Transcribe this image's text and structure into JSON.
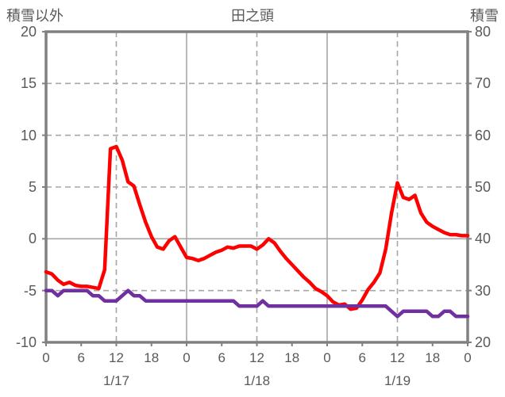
{
  "header": {
    "left_axis_title": "積雪以外",
    "chart_title": "田之頭",
    "right_axis_title": "積雪"
  },
  "colors": {
    "series_other": "#ff0000",
    "series_snow": "#7030a0",
    "gridline": "#a6a6a6",
    "border": "#808080",
    "text": "#595959"
  },
  "chart_data": {
    "type": "line",
    "title": "田之頭",
    "grid": true,
    "legend": "none",
    "left_axis": {
      "label": "積雪以外",
      "min": -10,
      "max": 20,
      "tick_step": 5,
      "ticks": [
        20,
        15,
        10,
        5,
        0,
        -5,
        -10
      ]
    },
    "right_axis": {
      "label": "積雪",
      "min": 20,
      "max": 80,
      "tick_step": 10,
      "ticks": [
        80,
        70,
        60,
        50,
        40,
        30,
        20
      ]
    },
    "x_axis": {
      "hours_total": 72,
      "hour_tick_step": 6,
      "hour_labels": [
        "0",
        "6",
        "12",
        "18",
        "0",
        "6",
        "12",
        "18",
        "0",
        "6",
        "12",
        "18",
        "0"
      ],
      "date_labels": [
        "1/17",
        "1/18",
        "1/19"
      ],
      "solid_gridlines_hours": [
        24,
        48
      ],
      "dashed_gridlines_hours": [
        12,
        36,
        60
      ]
    },
    "series": [
      {
        "name": "積雪以外",
        "axis": "left",
        "color": "#ff0000",
        "x_start_hour": 0,
        "x_step_hours": 1,
        "values": [
          -3.2,
          -3.4,
          -4.0,
          -4.4,
          -4.2,
          -4.5,
          -4.6,
          -4.6,
          -4.7,
          -4.8,
          -3.0,
          8.7,
          8.9,
          7.6,
          5.5,
          5.1,
          3.3,
          1.6,
          0.2,
          -0.8,
          -1.0,
          -0.2,
          0.2,
          -0.8,
          -1.8,
          -1.9,
          -2.1,
          -1.9,
          -1.6,
          -1.3,
          -1.1,
          -0.8,
          -0.9,
          -0.7,
          -0.7,
          -0.7,
          -1.0,
          -0.6,
          0.0,
          -0.4,
          -1.2,
          -1.9,
          -2.5,
          -3.1,
          -3.7,
          -4.2,
          -4.8,
          -5.1,
          -5.5,
          -6.1,
          -6.4,
          -6.3,
          -6.8,
          -6.7,
          -5.9,
          -4.9,
          -4.2,
          -3.3,
          -1.0,
          2.5,
          5.4,
          4.0,
          3.8,
          4.2,
          2.5,
          1.6,
          1.2,
          0.9,
          0.6,
          0.4,
          0.4,
          0.3,
          0.3
        ]
      },
      {
        "name": "積雪",
        "axis": "right",
        "color": "#7030a0",
        "x_start_hour": 0,
        "x_step_hours": 1,
        "values": [
          30,
          30,
          29,
          30,
          30,
          30,
          30,
          30,
          29,
          29,
          28,
          28,
          28,
          29,
          30,
          29,
          29,
          28,
          28,
          28,
          28,
          28,
          28,
          28,
          28,
          28,
          28,
          28,
          28,
          28,
          28,
          28,
          28,
          27,
          27,
          27,
          27,
          28,
          27,
          27,
          27,
          27,
          27,
          27,
          27,
          27,
          27,
          27,
          27,
          27,
          27,
          27,
          27,
          27,
          27,
          27,
          27,
          27,
          27,
          26,
          25,
          26,
          26,
          26,
          26,
          26,
          25,
          25,
          26,
          26,
          25,
          25,
          25
        ]
      }
    ]
  }
}
